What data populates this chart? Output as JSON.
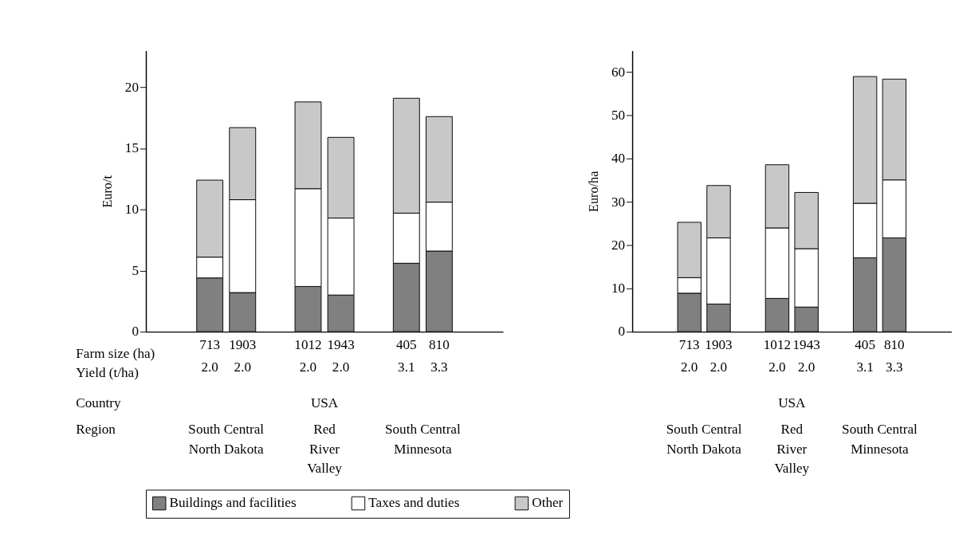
{
  "chart_data": [
    {
      "type": "bar",
      "stacked": true,
      "ylabel": "Euro/t",
      "ylim": [
        0,
        23
      ],
      "yticks": [
        0,
        5,
        10,
        15,
        20
      ],
      "grid": false,
      "legend": "bottom",
      "categories": [
        null,
        "713\n2.0",
        "1903\n2.0",
        null,
        "1012\n2.0",
        "1943\n2.0",
        null,
        "405\n3.1",
        "810\n3.3",
        null
      ],
      "series": [
        {
          "name": "Buildings and facilities",
          "color": "#808080",
          "values": [
            null,
            4.4,
            3.2,
            null,
            3.7,
            3.0,
            null,
            5.6,
            6.6,
            null
          ]
        },
        {
          "name": "Taxes and duties",
          "color": "#ffffff",
          "values": [
            null,
            1.7,
            7.6,
            null,
            8.0,
            6.3,
            null,
            4.1,
            4.0,
            null
          ]
        },
        {
          "name": "Other",
          "color": "#c8c8c8",
          "values": [
            null,
            6.3,
            5.9,
            null,
            7.1,
            6.6,
            null,
            9.4,
            7.0,
            null
          ]
        }
      ],
      "annotations": [
        "Farm size (ha)\nYield (t/ha)",
        "Country",
        "Region",
        "USA",
        "South Central\nNorth Dakota",
        "Red\nRiver\nValley",
        "South Central\nMinnesota"
      ]
    },
    {
      "type": "bar",
      "stacked": true,
      "ylabel": "Euro/ha",
      "ylim": [
        0,
        65
      ],
      "yticks": [
        0,
        10,
        20,
        30,
        40,
        50,
        60
      ],
      "grid": false,
      "legend": "bottom",
      "categories": [
        null,
        "713\n2.0",
        "1903\n2.0",
        null,
        "1012\n2.0",
        "1943\n2.0",
        null,
        "405\n3.1",
        "810\n3.3",
        null
      ],
      "series": [
        {
          "name": "Buildings and facilities",
          "color": "#808080",
          "values": [
            null,
            8.9,
            6.4,
            null,
            7.7,
            5.7,
            null,
            17.1,
            21.7,
            null
          ]
        },
        {
          "name": "Taxes and duties",
          "color": "#ffffff",
          "values": [
            null,
            3.6,
            15.3,
            null,
            16.3,
            13.5,
            null,
            12.6,
            13.4,
            null
          ]
        },
        {
          "name": "Other",
          "color": "#c8c8c8",
          "values": [
            null,
            12.8,
            12.1,
            null,
            14.6,
            13.0,
            null,
            29.3,
            23.3,
            null
          ]
        }
      ],
      "annotations": [
        "USA",
        "South Central\nNorth Dakota",
        "Red\nRiver\nValley",
        "South Central\nMinnesota"
      ]
    }
  ]
}
